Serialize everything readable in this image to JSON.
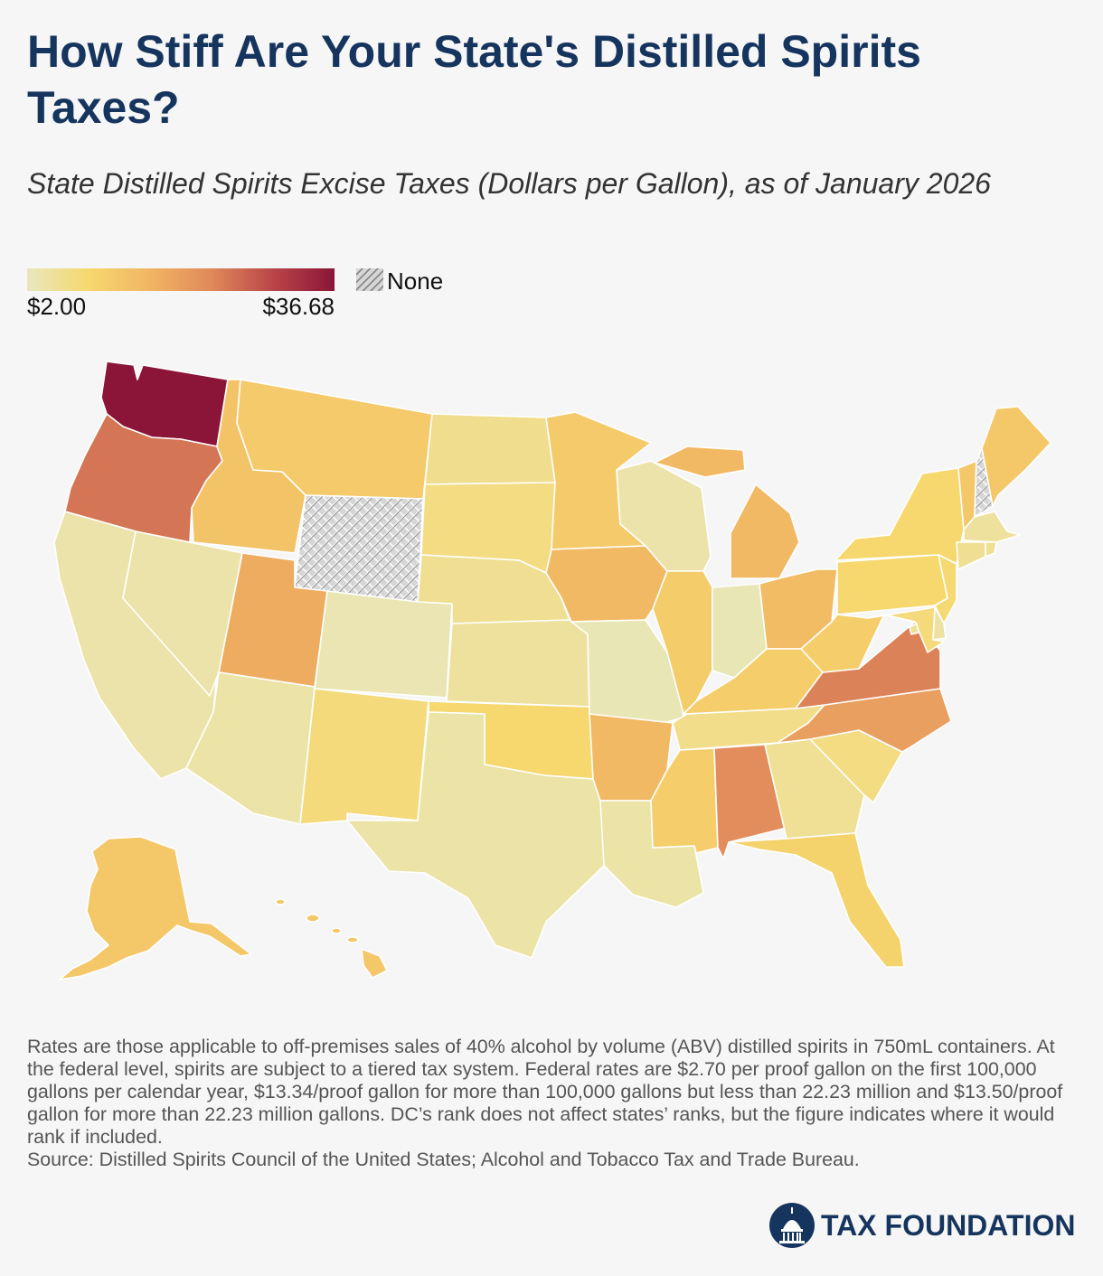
{
  "title": "How Stiff Are Your State's Distilled Spirits Taxes?",
  "subtitle": "State Distilled Spirits Excise Taxes (Dollars per Gallon), as of January 2026",
  "legend": {
    "min_label": "$2.00",
    "max_label": "$36.68",
    "none_label": "None",
    "min": 2.0,
    "max": 36.68,
    "gradient_colors": [
      "#e8e7be",
      "#f6d86e",
      "#f1b563",
      "#e0895a",
      "#b94548",
      "#8b1538"
    ],
    "none_color": "#d9d9d9"
  },
  "map_data": {
    "states": [
      {
        "id": "WA",
        "level": 1.0
      },
      {
        "id": "OR",
        "level": 0.66
      },
      {
        "id": "CA",
        "level": 0.05
      },
      {
        "id": "ID",
        "level": 0.32
      },
      {
        "id": "NV",
        "level": 0.05
      },
      {
        "id": "MT",
        "level": 0.28
      },
      {
        "id": "WY",
        "level": null
      },
      {
        "id": "UT",
        "level": 0.44
      },
      {
        "id": "AZ",
        "level": 0.06
      },
      {
        "id": "CO",
        "level": 0.03
      },
      {
        "id": "NM",
        "level": 0.17
      },
      {
        "id": "ND",
        "level": 0.12
      },
      {
        "id": "SD",
        "level": 0.15
      },
      {
        "id": "NE",
        "level": 0.11
      },
      {
        "id": "KS",
        "level": 0.08
      },
      {
        "id": "OK",
        "level": 0.2
      },
      {
        "id": "TX",
        "level": 0.06
      },
      {
        "id": "MN",
        "level": 0.28
      },
      {
        "id": "IA",
        "level": 0.38
      },
      {
        "id": "MO",
        "level": 0.02
      },
      {
        "id": "AR",
        "level": 0.38
      },
      {
        "id": "LA",
        "level": 0.06
      },
      {
        "id": "WI",
        "level": 0.05
      },
      {
        "id": "IL",
        "level": 0.27
      },
      {
        "id": "MI",
        "level": 0.38
      },
      {
        "id": "IN",
        "level": 0.02
      },
      {
        "id": "OH",
        "level": 0.36
      },
      {
        "id": "KY",
        "level": 0.26
      },
      {
        "id": "TN",
        "level": 0.13
      },
      {
        "id": "MS",
        "level": 0.26
      },
      {
        "id": "AL",
        "level": 0.58
      },
      {
        "id": "GA",
        "level": 0.1
      },
      {
        "id": "FL",
        "level": 0.23
      },
      {
        "id": "SC",
        "level": 0.15
      },
      {
        "id": "NC",
        "level": 0.5
      },
      {
        "id": "VA",
        "level": 0.62
      },
      {
        "id": "WV",
        "level": 0.26
      },
      {
        "id": "PA",
        "level": 0.2
      },
      {
        "id": "NY",
        "level": 0.2
      },
      {
        "id": "VT",
        "level": 0.3
      },
      {
        "id": "NH",
        "level": null
      },
      {
        "id": "ME",
        "level": 0.3
      },
      {
        "id": "MA",
        "level": 0.08
      },
      {
        "id": "CT",
        "level": 0.11
      },
      {
        "id": "RI",
        "level": 0.11
      },
      {
        "id": "NJ",
        "level": 0.19
      },
      {
        "id": "DE",
        "level": 0.07
      },
      {
        "id": "MD",
        "level": 0.17
      },
      {
        "id": "DC",
        "level": 0.08
      },
      {
        "id": "AK",
        "level": 0.3
      },
      {
        "id": "HI",
        "level": 0.3
      }
    ]
  },
  "notes": "Rates are those applicable to off-premises sales of 40% alcohol by volume (ABV) distilled spirits in 750mL containers. At the federal level, spirits are subject to a tiered tax system. Federal rates are $2.70 per proof gallon on the first 100,000 gallons per calendar year, $13.34/proof gallon for more than 100,000 gallons but less than 22.23 million and $13.50/proof gallon for more than 22.23 million gallons. DC’s rank does not affect states’ ranks, but the figure indicates where it would rank if included.",
  "source": "Source: Distilled Spirits Council of the United States; Alcohol and Tobacco Tax and Trade Bureau.",
  "brand": {
    "name": "TAX FOUNDATION",
    "color": "#16355e"
  }
}
